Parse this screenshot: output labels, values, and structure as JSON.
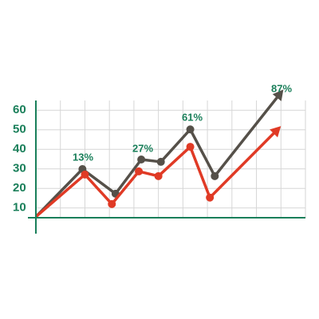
{
  "chart_data": {
    "type": "line",
    "xlim": [
      0,
      11
    ],
    "ylim": [
      5,
      65
    ],
    "yticks": [
      10,
      20,
      30,
      40,
      50,
      60
    ],
    "grid": true,
    "series": [
      {
        "color": "#555049",
        "x": [
          0,
          1.9,
          3.25,
          4.3,
          5.1,
          6.3,
          7.3,
          10.1
        ],
        "values": [
          5.5,
          29.9,
          17.3,
          34.8,
          33.6,
          50.2,
          26.3,
          70.6
        ]
      },
      {
        "color": "#e03a25",
        "x": [
          0,
          2.0,
          3.1,
          4.2,
          5.0,
          6.3,
          7.1,
          10.0
        ],
        "values": [
          5.5,
          27.1,
          12,
          28.7,
          26.3,
          41.3,
          15.3,
          51.9
        ]
      }
    ],
    "annotations": [
      "13%",
      "27%",
      "61%",
      "87%"
    ]
  }
}
